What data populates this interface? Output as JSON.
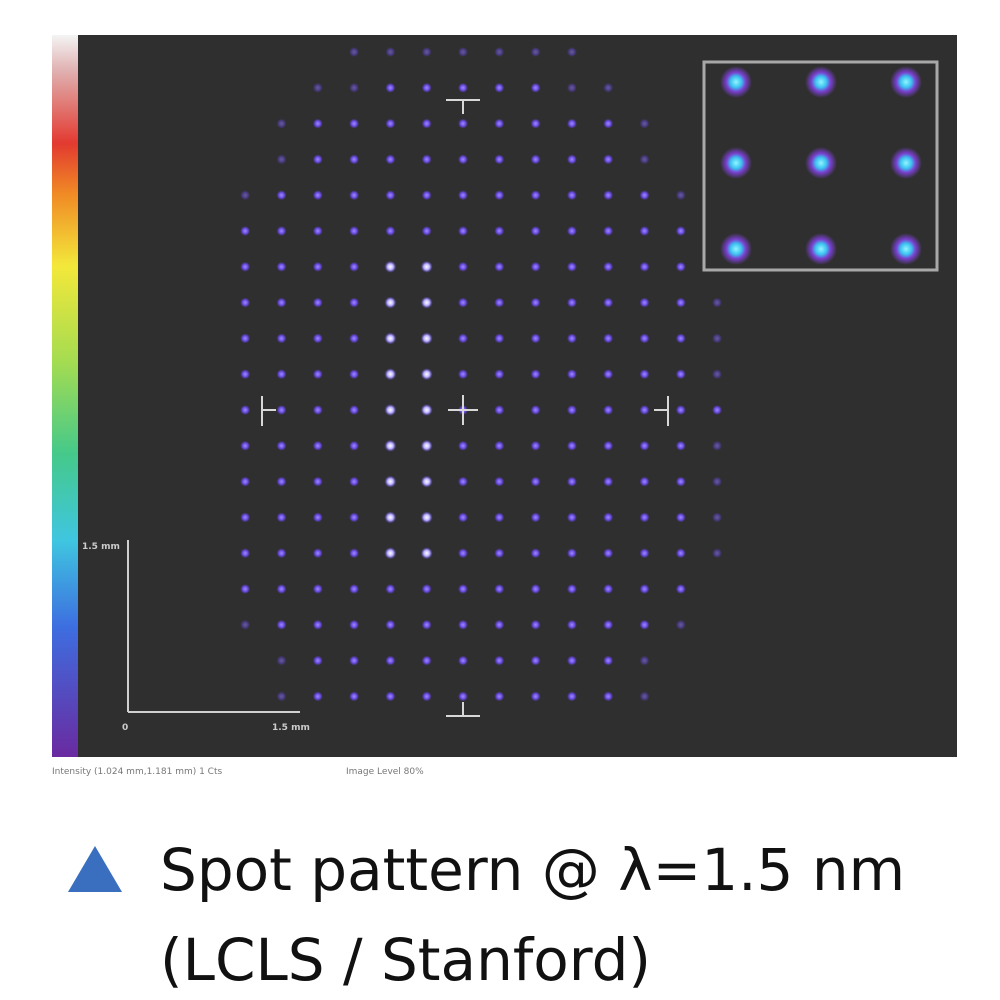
{
  "image": {
    "scale_labels": {
      "vertical": "1.5 mm",
      "origin": "0",
      "horizontal": "1.5 mm"
    },
    "status": [
      "Intensity (1.024 mm,1.181 mm) 1 Cts",
      "Image Level 80%"
    ]
  },
  "caption": {
    "lines": [
      "Spot pattern @ λ=1.5 nm",
      "(LCLS / Stanford)"
    ]
  }
}
